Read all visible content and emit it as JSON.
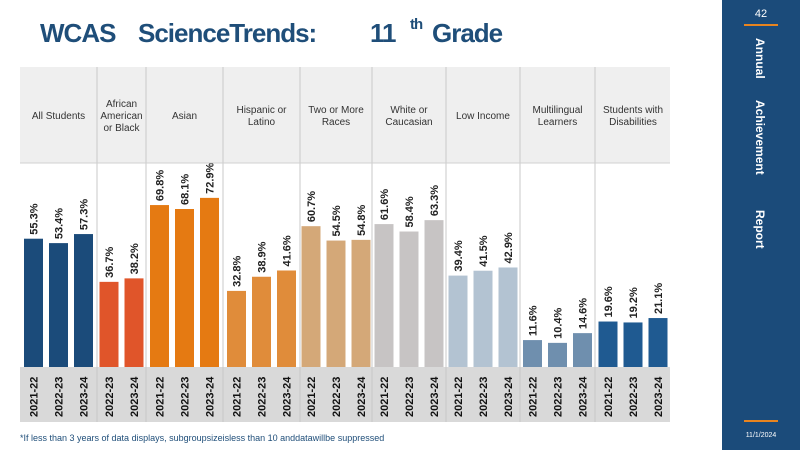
{
  "header": {
    "title_part1": "WCAS",
    "title_part2": "ScienceTrends:",
    "title_part3": "11",
    "title_sup": "th",
    "title_part4": "Grade"
  },
  "footnote": "*If less than 3 years of data displays, subgroupsizeisless than 10 anddatawillbe suppressed",
  "sidebar": {
    "page_number": "42",
    "vertical_words": [
      "Annual",
      "Achievement",
      "Report"
    ],
    "date": "11/1/2024",
    "bg_color": "#1b4b7a",
    "accent_color": "#e8841f"
  },
  "chart_data": {
    "type": "bar",
    "ylim": [
      0,
      100
    ],
    "grid": false,
    "groups": [
      {
        "label": [
          "All Students"
        ],
        "color": "#1b4b7a",
        "bars": [
          {
            "x": "2021-22",
            "value": 55.3,
            "label": "55.3%"
          },
          {
            "x": "2022-23",
            "value": 53.4,
            "label": "53.4%"
          },
          {
            "x": "2023-24",
            "value": 57.3,
            "label": "57.3%"
          }
        ]
      },
      {
        "label": [
          "African",
          "American",
          "or Black"
        ],
        "color": "#e0552a",
        "bars": [
          {
            "x": "2022-23",
            "value": 36.7,
            "label": "36.7%"
          },
          {
            "x": "2023-24",
            "value": 38.2,
            "label": "38.2%"
          }
        ]
      },
      {
        "label": [
          "Asian"
        ],
        "color": "#e57a12",
        "bars": [
          {
            "x": "2021-22",
            "value": 69.8,
            "label": "69.8%"
          },
          {
            "x": "2022-23",
            "value": 68.1,
            "label": "68.1%"
          },
          {
            "x": "2023-24",
            "value": 72.9,
            "label": "72.9%"
          }
        ]
      },
      {
        "label": [
          "Hispanic or",
          "Latino"
        ],
        "color": "#e08c3a",
        "bars": [
          {
            "x": "2021-22",
            "value": 32.8,
            "label": "32.8%"
          },
          {
            "x": "2022-23",
            "value": 38.9,
            "label": "38.9%"
          },
          {
            "x": "2023-24",
            "value": 41.6,
            "label": "41.6%"
          }
        ]
      },
      {
        "label": [
          "Two or More",
          "Races"
        ],
        "color": "#d4a878",
        "bars": [
          {
            "x": "2021-22",
            "value": 60.7,
            "label": "60.7%"
          },
          {
            "x": "2022-23",
            "value": 54.5,
            "label": "54.5%"
          },
          {
            "x": "2023-24",
            "value": 54.8,
            "label": "54.8%"
          }
        ]
      },
      {
        "label": [
          "White or",
          "Caucasian"
        ],
        "color": "#c7c4c4",
        "bars": [
          {
            "x": "2021-22",
            "value": 61.6,
            "label": "61.6%"
          },
          {
            "x": "2022-23",
            "value": 58.4,
            "label": "58.4%"
          },
          {
            "x": "2023-24",
            "value": 63.3,
            "label": "63.3%"
          }
        ]
      },
      {
        "label": [
          "Low Income"
        ],
        "color": "#b3c3d2",
        "bars": [
          {
            "x": "2021-22",
            "value": 39.4,
            "label": "39.4%"
          },
          {
            "x": "2022-23",
            "value": 41.5,
            "label": "41.5%"
          },
          {
            "x": "2023-24",
            "value": 42.9,
            "label": "42.9%"
          }
        ]
      },
      {
        "label": [
          "Multilingual",
          "Learners"
        ],
        "color": "#6f8fae",
        "bars": [
          {
            "x": "2021-22",
            "value": 11.6,
            "label": "11.6%"
          },
          {
            "x": "2022-23",
            "value": 10.4,
            "label": "10.4%"
          },
          {
            "x": "2023-24",
            "value": 14.6,
            "label": "14.6%"
          }
        ]
      },
      {
        "label": [
          "Students with",
          "Disabilities"
        ],
        "color": "#1f5a91",
        "bars": [
          {
            "x": "2021-22",
            "value": 19.6,
            "label": "19.6%"
          },
          {
            "x": "2022-23",
            "value": 19.2,
            "label": "19.2%"
          },
          {
            "x": "2023-24",
            "value": 21.1,
            "label": "21.1%"
          }
        ]
      }
    ]
  }
}
